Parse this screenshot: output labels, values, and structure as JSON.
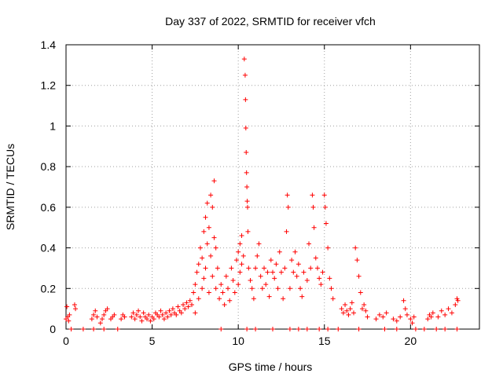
{
  "chart_data": {
    "type": "scatter",
    "title": "Day 337 of 2022, SRMTID for receiver vfch",
    "xlabel": "GPS time / hours",
    "ylabel": "SRMTID / TECUs",
    "xlim": [
      0,
      24
    ],
    "ylim": [
      0,
      1.4
    ],
    "xticks": [
      0,
      5,
      10,
      15,
      20
    ],
    "xtick_labels": [
      "0",
      "5",
      "10",
      "15",
      "20"
    ],
    "yticks": [
      0,
      0.2,
      0.4,
      0.6,
      0.8,
      1,
      1.2,
      1.4
    ],
    "ytick_labels": [
      "0",
      "0.2",
      "0.4",
      "0.6",
      "0.8",
      "1",
      "1.2",
      "1.4"
    ],
    "grid": true,
    "marker": "plus",
    "color": "#ff0000",
    "series": [
      {
        "name": "SRMTID",
        "points": [
          [
            0.0,
            0.05
          ],
          [
            0.05,
            0.11
          ],
          [
            0.1,
            0.06
          ],
          [
            0.15,
            0.04
          ],
          [
            0.2,
            0.07
          ],
          [
            0.5,
            0.12
          ],
          [
            0.55,
            0.1
          ],
          [
            1.5,
            0.05
          ],
          [
            1.6,
            0.07
          ],
          [
            1.7,
            0.09
          ],
          [
            1.8,
            0.06
          ],
          [
            2.0,
            0.03
          ],
          [
            2.1,
            0.05
          ],
          [
            2.2,
            0.07
          ],
          [
            2.3,
            0.09
          ],
          [
            2.4,
            0.1
          ],
          [
            2.6,
            0.05
          ],
          [
            2.7,
            0.06
          ],
          [
            2.8,
            0.07
          ],
          [
            3.2,
            0.05
          ],
          [
            3.3,
            0.07
          ],
          [
            3.4,
            0.06
          ],
          [
            3.8,
            0.06
          ],
          [
            3.9,
            0.08
          ],
          [
            4.0,
            0.05
          ],
          [
            4.1,
            0.07
          ],
          [
            4.2,
            0.09
          ],
          [
            4.3,
            0.06
          ],
          [
            4.4,
            0.04
          ],
          [
            4.5,
            0.08
          ],
          [
            4.6,
            0.06
          ],
          [
            4.7,
            0.05
          ],
          [
            4.8,
            0.07
          ],
          [
            4.9,
            0.04
          ],
          [
            5.0,
            0.06
          ],
          [
            5.1,
            0.05
          ],
          [
            5.2,
            0.08
          ],
          [
            5.3,
            0.07
          ],
          [
            5.4,
            0.06
          ],
          [
            5.5,
            0.09
          ],
          [
            5.6,
            0.07
          ],
          [
            5.7,
            0.05
          ],
          [
            5.8,
            0.08
          ],
          [
            5.9,
            0.06
          ],
          [
            6.0,
            0.09
          ],
          [
            6.1,
            0.07
          ],
          [
            6.2,
            0.1
          ],
          [
            6.3,
            0.08
          ],
          [
            6.4,
            0.07
          ],
          [
            6.5,
            0.11
          ],
          [
            6.6,
            0.09
          ],
          [
            6.7,
            0.08
          ],
          [
            6.8,
            0.12
          ],
          [
            6.9,
            0.1
          ],
          [
            7.0,
            0.13
          ],
          [
            7.1,
            0.11
          ],
          [
            7.2,
            0.14
          ],
          [
            7.3,
            0.12
          ],
          [
            7.4,
            0.18
          ],
          [
            7.5,
            0.22
          ],
          [
            7.5,
            0.08
          ],
          [
            7.6,
            0.28
          ],
          [
            7.7,
            0.32
          ],
          [
            7.7,
            0.15
          ],
          [
            7.8,
            0.4
          ],
          [
            7.9,
            0.35
          ],
          [
            7.9,
            0.2
          ],
          [
            8.0,
            0.48
          ],
          [
            8.0,
            0.25
          ],
          [
            8.1,
            0.55
          ],
          [
            8.1,
            0.3
          ],
          [
            8.2,
            0.62
          ],
          [
            8.2,
            0.42
          ],
          [
            8.3,
            0.5
          ],
          [
            8.3,
            0.18
          ],
          [
            8.4,
            0.66
          ],
          [
            8.4,
            0.36
          ],
          [
            8.5,
            0.6
          ],
          [
            8.5,
            0.26
          ],
          [
            8.6,
            0.73
          ],
          [
            8.6,
            0.45
          ],
          [
            8.7,
            0.4
          ],
          [
            8.7,
            0.2
          ],
          [
            8.8,
            0.3
          ],
          [
            8.9,
            0.15
          ],
          [
            9.0,
            0.22
          ],
          [
            9.1,
            0.18
          ],
          [
            9.2,
            0.12
          ],
          [
            9.3,
            0.26
          ],
          [
            9.4,
            0.2
          ],
          [
            9.5,
            0.14
          ],
          [
            9.6,
            0.3
          ],
          [
            9.7,
            0.24
          ],
          [
            9.8,
            0.18
          ],
          [
            9.9,
            0.34
          ],
          [
            10.0,
            0.38
          ],
          [
            10.0,
            0.22
          ],
          [
            10.1,
            0.42
          ],
          [
            10.1,
            0.28
          ],
          [
            10.2,
            0.46
          ],
          [
            10.2,
            0.32
          ],
          [
            10.3,
            0.36
          ],
          [
            10.35,
            1.33
          ],
          [
            10.4,
            1.25
          ],
          [
            10.42,
            1.13
          ],
          [
            10.44,
            0.99
          ],
          [
            10.46,
            0.87
          ],
          [
            10.48,
            0.77
          ],
          [
            10.5,
            0.7
          ],
          [
            10.52,
            0.63
          ],
          [
            10.54,
            0.6
          ],
          [
            10.56,
            0.48
          ],
          [
            10.6,
            0.3
          ],
          [
            10.7,
            0.24
          ],
          [
            10.8,
            0.2
          ],
          [
            10.9,
            0.15
          ],
          [
            11.0,
            0.3
          ],
          [
            11.1,
            0.36
          ],
          [
            11.2,
            0.42
          ],
          [
            11.3,
            0.26
          ],
          [
            11.4,
            0.2
          ],
          [
            11.5,
            0.3
          ],
          [
            11.6,
            0.22
          ],
          [
            11.7,
            0.28
          ],
          [
            11.8,
            0.16
          ],
          [
            11.9,
            0.34
          ],
          [
            12.0,
            0.28
          ],
          [
            12.1,
            0.25
          ],
          [
            12.2,
            0.32
          ],
          [
            12.3,
            0.2
          ],
          [
            12.4,
            0.38
          ],
          [
            12.5,
            0.28
          ],
          [
            12.6,
            0.15
          ],
          [
            12.7,
            0.3
          ],
          [
            12.8,
            0.48
          ],
          [
            12.85,
            0.66
          ],
          [
            12.9,
            0.6
          ],
          [
            13.0,
            0.2
          ],
          [
            13.1,
            0.34
          ],
          [
            13.2,
            0.28
          ],
          [
            13.3,
            0.38
          ],
          [
            13.4,
            0.26
          ],
          [
            13.5,
            0.32
          ],
          [
            13.6,
            0.2
          ],
          [
            13.7,
            0.16
          ],
          [
            13.8,
            0.28
          ],
          [
            14.0,
            0.24
          ],
          [
            14.1,
            0.42
          ],
          [
            14.2,
            0.3
          ],
          [
            14.3,
            0.66
          ],
          [
            14.35,
            0.6
          ],
          [
            14.4,
            0.5
          ],
          [
            14.5,
            0.35
          ],
          [
            14.6,
            0.3
          ],
          [
            14.7,
            0.25
          ],
          [
            14.8,
            0.22
          ],
          [
            14.9,
            0.28
          ],
          [
            15.0,
            0.66
          ],
          [
            15.05,
            0.6
          ],
          [
            15.1,
            0.52
          ],
          [
            15.2,
            0.4
          ],
          [
            15.3,
            0.25
          ],
          [
            15.4,
            0.2
          ],
          [
            15.5,
            0.15
          ],
          [
            16.0,
            0.1
          ],
          [
            16.1,
            0.08
          ],
          [
            16.2,
            0.12
          ],
          [
            16.3,
            0.09
          ],
          [
            16.4,
            0.07
          ],
          [
            16.5,
            0.1
          ],
          [
            16.6,
            0.13
          ],
          [
            16.7,
            0.08
          ],
          [
            16.8,
            0.4
          ],
          [
            16.9,
            0.34
          ],
          [
            17.0,
            0.26
          ],
          [
            17.1,
            0.18
          ],
          [
            17.2,
            0.1
          ],
          [
            17.3,
            0.12
          ],
          [
            17.4,
            0.09
          ],
          [
            17.5,
            0.06
          ],
          [
            18.0,
            0.05
          ],
          [
            18.2,
            0.07
          ],
          [
            18.4,
            0.06
          ],
          [
            18.6,
            0.08
          ],
          [
            19.0,
            0.05
          ],
          [
            19.2,
            0.04
          ],
          [
            19.4,
            0.06
          ],
          [
            19.6,
            0.14
          ],
          [
            19.7,
            0.1
          ],
          [
            19.8,
            0.07
          ],
          [
            20.0,
            0.05
          ],
          [
            20.1,
            0.03
          ],
          [
            20.2,
            0.06
          ],
          [
            21.0,
            0.05
          ],
          [
            21.1,
            0.07
          ],
          [
            21.2,
            0.06
          ],
          [
            21.3,
            0.08
          ],
          [
            21.6,
            0.06
          ],
          [
            21.8,
            0.09
          ],
          [
            22.0,
            0.07
          ],
          [
            22.2,
            0.1
          ],
          [
            22.4,
            0.08
          ],
          [
            22.6,
            0.12
          ],
          [
            22.7,
            0.15
          ],
          [
            22.75,
            0.14
          ],
          [
            0.3,
            0.0
          ],
          [
            1.0,
            0.0
          ],
          [
            1.6,
            0.0
          ],
          [
            2.2,
            0.0
          ],
          [
            3.0,
            0.0
          ],
          [
            9.0,
            0.0
          ],
          [
            10.5,
            0.0
          ],
          [
            11.0,
            0.0
          ],
          [
            12.0,
            0.0
          ],
          [
            13.0,
            0.0
          ],
          [
            13.5,
            0.0
          ],
          [
            14.0,
            0.0
          ],
          [
            14.7,
            0.0
          ],
          [
            15.2,
            0.0
          ],
          [
            15.8,
            0.0
          ],
          [
            17.0,
            0.0
          ],
          [
            18.5,
            0.0
          ],
          [
            19.2,
            0.0
          ],
          [
            20.3,
            0.0
          ],
          [
            20.8,
            0.0
          ],
          [
            21.5,
            0.0
          ],
          [
            22.0,
            0.0
          ],
          [
            22.7,
            0.0
          ]
        ]
      }
    ]
  }
}
